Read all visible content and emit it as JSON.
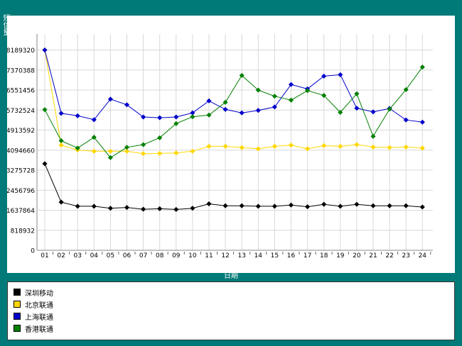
{
  "chart_data": {
    "type": "line",
    "xlabel": "日期",
    "ylabel": "短信量",
    "categories": [
      "01",
      "02",
      "03",
      "04",
      "05",
      "06",
      "07",
      "08",
      "09",
      "10",
      "11",
      "12",
      "13",
      "14",
      "15",
      "16",
      "17",
      "18",
      "19",
      "20",
      "21",
      "22",
      "23",
      "24"
    ],
    "y_ticks": [
      "0",
      "818932",
      "1637864",
      "2456796",
      "3275728",
      "4094660",
      "4913592",
      "5732524",
      "6551456",
      "7370388",
      "8189320"
    ],
    "ylim": [
      0,
      8843000
    ],
    "grid": true,
    "legend_position": "bottom",
    "series": [
      {
        "name": "深圳移动",
        "color": "#000000",
        "values": [
          3540000,
          1970000,
          1800000,
          1800000,
          1720000,
          1750000,
          1680000,
          1700000,
          1670000,
          1720000,
          1900000,
          1820000,
          1820000,
          1800000,
          1800000,
          1850000,
          1780000,
          1880000,
          1800000,
          1880000,
          1820000,
          1820000,
          1820000,
          1770000
        ]
      },
      {
        "name": "北京联通",
        "color": "#ffd700",
        "values": [
          8190000,
          4300000,
          4100000,
          4050000,
          4050000,
          4050000,
          3950000,
          3960000,
          3980000,
          4050000,
          4250000,
          4250000,
          4200000,
          4150000,
          4250000,
          4300000,
          4150000,
          4280000,
          4250000,
          4320000,
          4220000,
          4200000,
          4220000,
          4180000
        ]
      },
      {
        "name": "上海联通",
        "color": "#0000cc",
        "values": [
          8190000,
          5600000,
          5500000,
          5340000,
          6180000,
          5950000,
          5450000,
          5420000,
          5450000,
          5620000,
          6110000,
          5760000,
          5620000,
          5720000,
          5860000,
          6780000,
          6600000,
          7120000,
          7180000,
          5810000,
          5660000,
          5800000,
          5330000,
          5240000
        ]
      },
      {
        "name": "香港联通",
        "color": "#008000",
        "values": [
          5750000,
          4480000,
          4180000,
          4620000,
          3790000,
          4210000,
          4320000,
          4600000,
          5180000,
          5460000,
          5530000,
          6050000,
          7150000,
          6550000,
          6300000,
          6140000,
          6530000,
          6330000,
          5640000,
          6400000,
          4660000,
          5770000,
          6570000,
          7490000
        ]
      }
    ]
  }
}
